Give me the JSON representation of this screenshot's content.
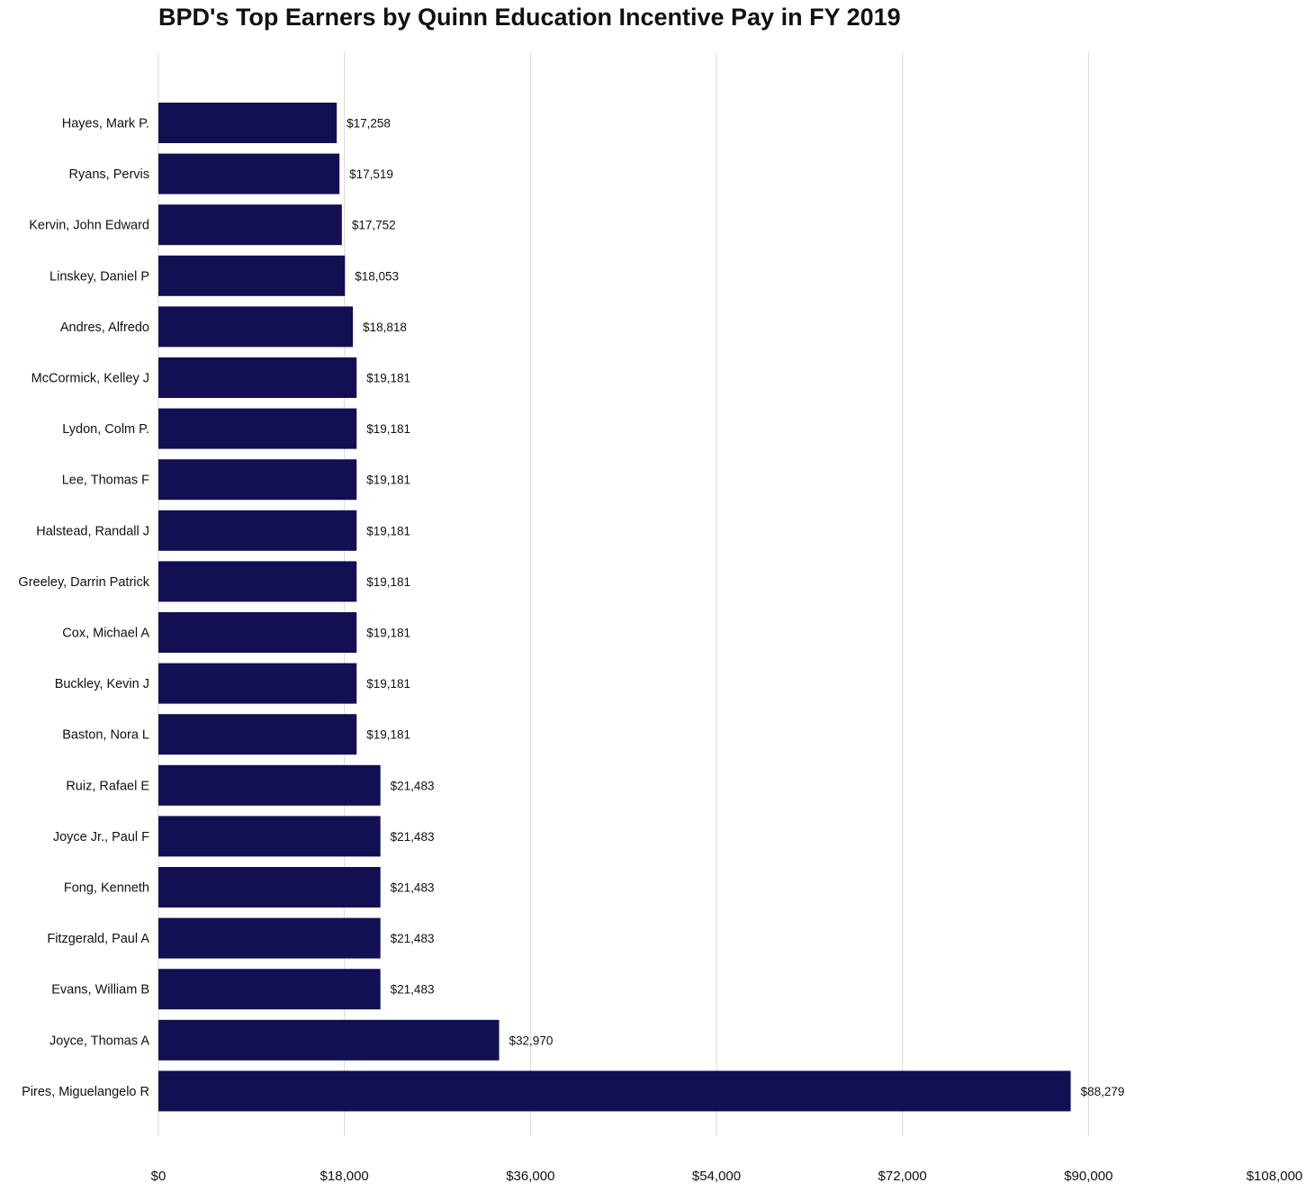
{
  "chart_data": {
    "type": "bar",
    "orientation": "horizontal",
    "title": "BPD's Top Earners by Quinn Education Incentive Pay in FY 2019",
    "xlabel": "",
    "ylabel": "",
    "xlim": [
      0,
      108000
    ],
    "x_ticks": [
      0,
      18000,
      36000,
      54000,
      72000,
      90000,
      108000
    ],
    "x_tick_labels": [
      "$0",
      "$18,000",
      "$36,000",
      "$54,000",
      "$72,000",
      "$90,000",
      "$108,000"
    ],
    "grid": "vertical",
    "bar_color": "#120f52",
    "categories": [
      "Hayes, Mark P.",
      "Ryans, Pervis",
      "Kervin, John Edward",
      "Linskey, Daniel P",
      "Andres, Alfredo",
      "McCormick, Kelley J",
      "Lydon, Colm P.",
      "Lee, Thomas F",
      "Halstead, Randall J",
      "Greeley, Darrin Patrick",
      "Cox, Michael A",
      "Buckley, Kevin J",
      "Baston, Nora L",
      "Ruiz, Rafael E",
      "Joyce Jr., Paul F",
      "Fong, Kenneth",
      "Fitzgerald, Paul A",
      "Evans, William B",
      "Joyce, Thomas A",
      "Pires, Miguelangelo R"
    ],
    "values": [
      17258,
      17519,
      17752,
      18053,
      18818,
      19181,
      19181,
      19181,
      19181,
      19181,
      19181,
      19181,
      19181,
      21483,
      21483,
      21483,
      21483,
      21483,
      32970,
      88279
    ],
    "value_labels": [
      "$17,258",
      "$17,519",
      "$17,752",
      "$18,053",
      "$18,818",
      "$19,181",
      "$19,181",
      "$19,181",
      "$19,181",
      "$19,181",
      "$19,181",
      "$19,181",
      "$19,181",
      "$21,483",
      "$21,483",
      "$21,483",
      "$21,483",
      "$21,483",
      "$32,970",
      "$88,279"
    ]
  }
}
